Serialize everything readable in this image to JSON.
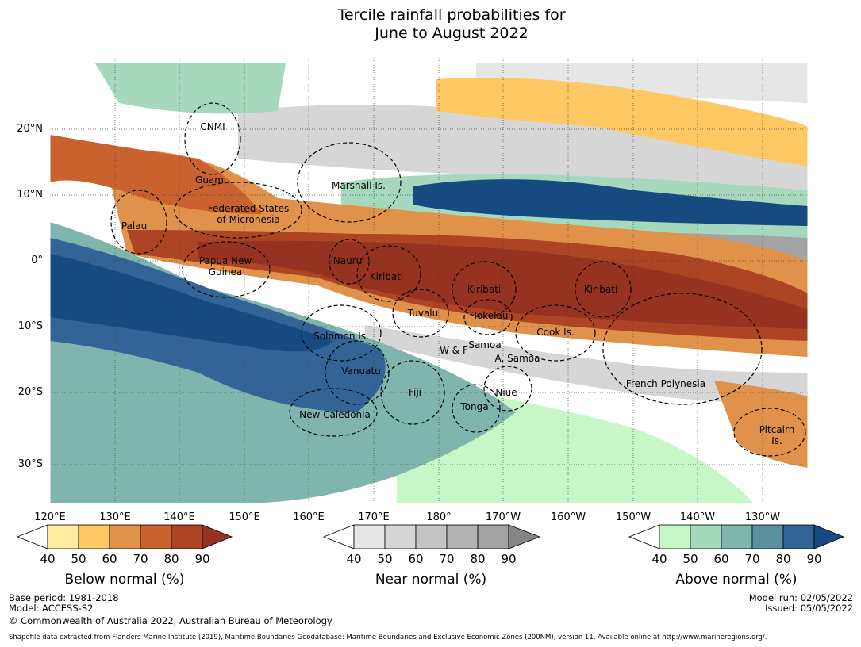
{
  "title": [
    "Tercile rainfall probabilities for",
    "June to August 2022"
  ],
  "lat_ticks": [
    "20°N",
    "10°N",
    "0°",
    "10°S",
    "20°S",
    "30°S"
  ],
  "lon_ticks": [
    "120°E",
    "130°E",
    "140°E",
    "150°E",
    "160°E",
    "170°E",
    "180°",
    "170°W",
    "160°W",
    "150°W",
    "140°W",
    "130°W"
  ],
  "regions": [
    "CNMI",
    "Guam",
    "Marshall Is.",
    "Federated States\nof Micronesia",
    "Palau",
    "Papua New\nGuinea",
    "Nauru",
    "Kiribati",
    "Kiribati",
    "Kiribati",
    "Tuvalu",
    "Tokelau",
    "Solomon Is.",
    "W & F",
    "Samoa",
    "A. Samoa",
    "Cook Is.",
    "Vanuatu",
    "Fiji",
    "Niue",
    "Tonga",
    "French Polynesia",
    "New Caledonia",
    "Pitcairn\nIs."
  ],
  "colorbars": [
    {
      "name": "Below normal (%)",
      "ticks": [
        "40",
        "50",
        "60",
        "70",
        "80",
        "90"
      ],
      "colors": [
        "#ffffff",
        "#ffeda0",
        "#fec965",
        "#e0924a",
        "#c9622f",
        "#ad4424",
        "#973221"
      ]
    },
    {
      "name": "Near normal (%)",
      "ticks": [
        "40",
        "50",
        "60",
        "70",
        "80",
        "90"
      ],
      "colors": [
        "#ffffff",
        "#e6e6e6",
        "#d6d6d6",
        "#c4c4c4",
        "#b3b3b3",
        "#a3a3a3",
        "#858585"
      ]
    },
    {
      "name": "Above normal (%)",
      "ticks": [
        "40",
        "50",
        "60",
        "70",
        "80",
        "90"
      ],
      "colors": [
        "#ffffff",
        "#c7f7c7",
        "#a5d8bd",
        "#80b5ad",
        "#5b90a0",
        "#336497",
        "#164b82"
      ]
    }
  ],
  "footer": {
    "base_period": "Base period: 1981-2018",
    "model": "Model: ACCESS-S2",
    "copyright": "© Commonwealth of Australia 2022, Australian Bureau of Meteorology",
    "model_run": "Model run: 02/05/2022",
    "issued": "Issued: 05/05/2022",
    "shapefile": "Shapefile data extracted from Flanders Marine Institute (2019), Maritime Boundaries Geodatabase: Maritime Boundaries and Exclusive Economic Zones (200NM), version 11. Available online at http://www.marineregions.org/."
  }
}
